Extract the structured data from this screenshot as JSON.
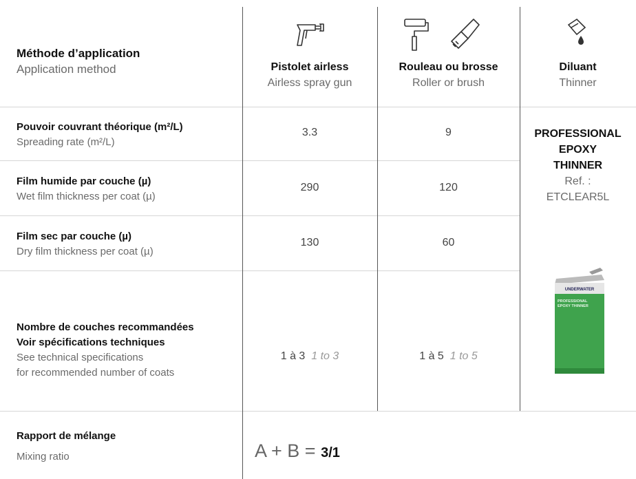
{
  "header": {
    "label_fr": "Méthode d’application",
    "label_en": "Application method",
    "columns": [
      {
        "fr": "Pistolet airless",
        "en": "Airless spray gun"
      },
      {
        "fr": "Rouleau ou brosse",
        "en": "Roller or brush"
      },
      {
        "fr": "Diluant",
        "en": "Thinner"
      }
    ]
  },
  "rows": [
    {
      "label_fr": "Pouvoir couvrant théorique (m²/L)",
      "label_en": "Spreading rate (m²/L)",
      "values": [
        3.3,
        9
      ]
    },
    {
      "label_fr": "Film humide par couche (µ)",
      "label_en": "Wet film thickness per coat (µ)",
      "values": [
        290,
        120
      ]
    },
    {
      "label_fr": "Film sec par couche (µ)",
      "label_en": "Dry film thickness per coat (µ)",
      "values": [
        130,
        60
      ]
    },
    {
      "label_fr": [
        "Nombre de couches recommandées",
        "Voir spécifications techniques"
      ],
      "label_en": [
        "See technical specifications",
        "for recommended number of coats"
      ],
      "values": [
        {
          "fr": "1 à 3",
          "en": "1 to 3"
        },
        {
          "fr": "1 à 5",
          "en": "1 to 5"
        }
      ]
    }
  ],
  "thinner": {
    "name": [
      "PROFESSIONAL",
      "EPOXY",
      "THINNER"
    ],
    "ref_label": "Ref. :",
    "ref": "ETCLEAR5L",
    "can_brand": "UNDERWATER",
    "can_label": [
      "PROFESSIONAL",
      "EPOXY THINNER"
    ]
  },
  "mixing": {
    "label_fr": "Rapport de mélange",
    "label_en": "Mixing ratio",
    "formula": "A + B =",
    "ratio": "3/1"
  }
}
